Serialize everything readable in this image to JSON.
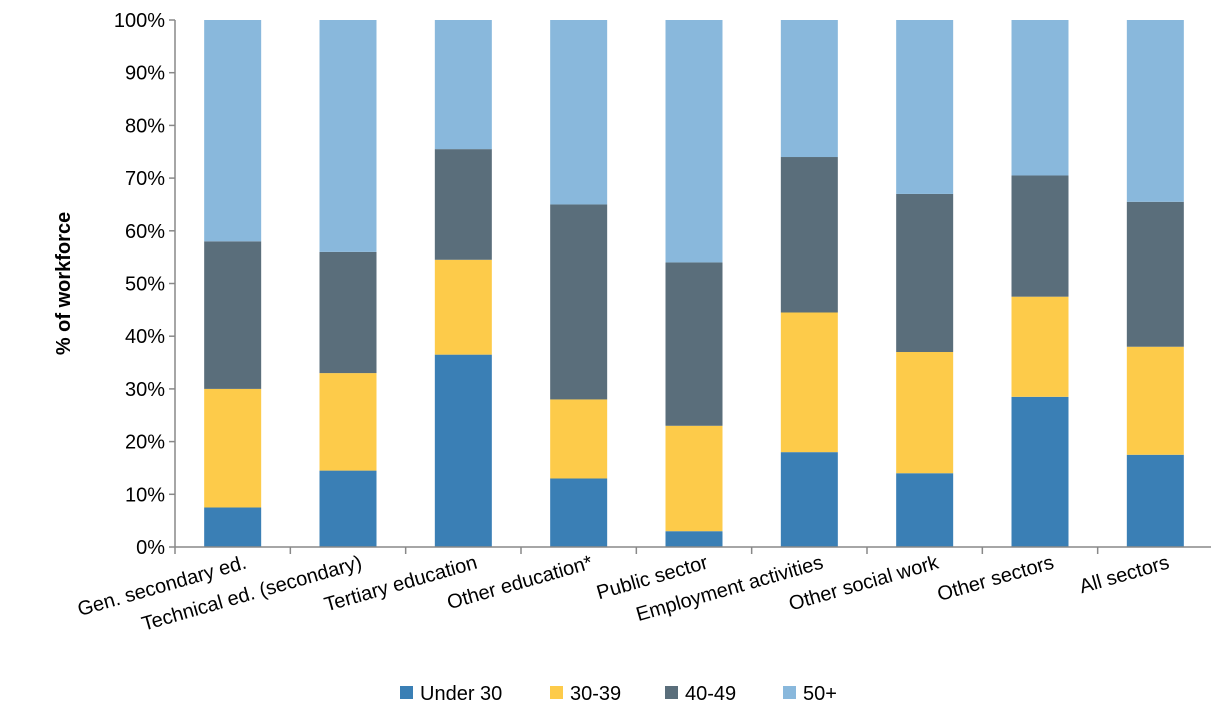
{
  "chart_data": {
    "type": "bar",
    "stacked": true,
    "title": "",
    "xlabel": "",
    "ylabel": "% of workforce",
    "ylim": [
      0,
      100
    ],
    "y_ticks": [
      "0%",
      "10%",
      "20%",
      "30%",
      "40%",
      "50%",
      "60%",
      "70%",
      "80%",
      "90%",
      "100%"
    ],
    "grid": false,
    "legend_position": "bottom",
    "categories": [
      "Gen. secondary ed.",
      "Technical ed. (secondary)",
      "Tertiary education",
      "Other education*",
      "Public sector",
      "Employment activities",
      "Other social work",
      "Other sectors",
      "All sectors"
    ],
    "series": [
      {
        "name": "Under 30",
        "color": "#3a7fb5",
        "values": [
          7.5,
          14.5,
          36.5,
          13,
          3,
          18,
          14,
          28.5,
          17.5
        ]
      },
      {
        "name": "30-39",
        "color": "#fdcb4a",
        "values": [
          22.5,
          18.5,
          18,
          15,
          20,
          26.5,
          23,
          19,
          20.5
        ]
      },
      {
        "name": "40-49",
        "color": "#5a6e7b",
        "values": [
          28,
          23,
          21,
          37,
          31,
          29.5,
          30,
          23,
          27.5
        ]
      },
      {
        "name": "50+",
        "color": "#89b8dc",
        "values": [
          42,
          44,
          24.5,
          35,
          46,
          26,
          33,
          29.5,
          34.5
        ]
      }
    ]
  }
}
